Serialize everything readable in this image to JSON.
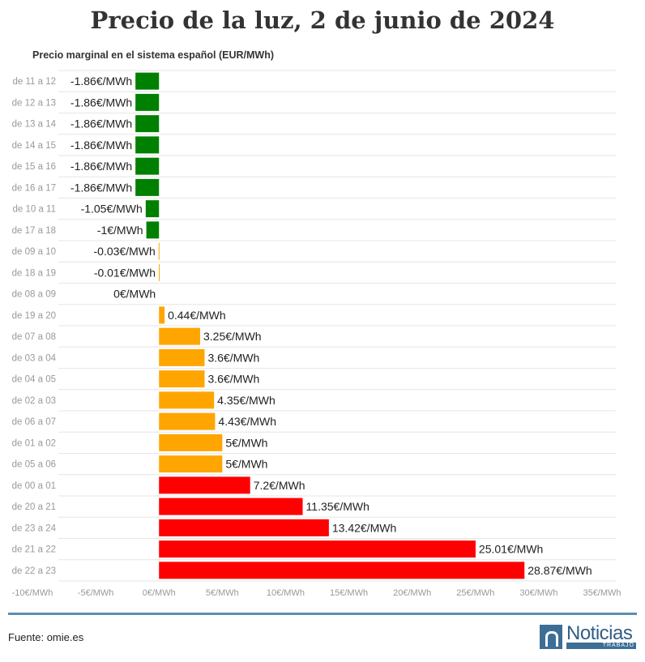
{
  "header": {
    "title": "Precio de la luz, 2 de junio de 2024",
    "subtitle": "Precio marginal en el sistema español (EUR/MWh)"
  },
  "footer": {
    "source": "Fuente: omie.es",
    "logo_text": "Noticias",
    "logo_sub": "TRABAJO"
  },
  "colors": {
    "negative": "#008000",
    "mid": "#FFA500",
    "high": "#FF0000",
    "grid": "#e6e6e6",
    "rule": "#5b8fb0"
  },
  "chart_data": {
    "type": "bar",
    "orientation": "horizontal",
    "title": "Precio de la luz, 2 de junio de 2024",
    "subtitle": "Precio marginal en el sistema español (EUR/MWh)",
    "unit_suffix": "€/MWh",
    "xlim": [
      -10,
      35
    ],
    "xticks": [
      -10,
      -5,
      0,
      5,
      10,
      15,
      20,
      25,
      30,
      35
    ],
    "xtick_labels": [
      "-10€/MWh",
      "-5€/MWh",
      "0€/MWh",
      "5€/MWh",
      "10€/MWh",
      "15€/MWh",
      "20€/MWh",
      "25€/MWh",
      "30€/MWh",
      "35€/MWh"
    ],
    "grid": true,
    "categories": [
      "de 11 a 12",
      "de 12 a 13",
      "de 13 a 14",
      "de 14 a 15",
      "de 15 a 16",
      "de 16 a 17",
      "de 10 a 11",
      "de 17 a 18",
      "de 09 a 10",
      "de 18 a 19",
      "de 08 a 09",
      "de 19 a 20",
      "de 07 a 08",
      "de 03 a 04",
      "de 04 a 05",
      "de 02 a 03",
      "de 06 a 07",
      "de 01 a 02",
      "de 05 a 06",
      "de 00 a 01",
      "de 20 a 21",
      "de 23 a 24",
      "de 21 a 22",
      "de 22 a 23"
    ],
    "values": [
      -1.86,
      -1.86,
      -1.86,
      -1.86,
      -1.86,
      -1.86,
      -1.05,
      -1,
      -0.03,
      -0.01,
      0,
      0.44,
      3.25,
      3.6,
      3.6,
      4.35,
      4.43,
      5,
      5,
      7.2,
      11.35,
      13.42,
      25.01,
      28.87
    ],
    "value_labels": [
      "-1.86€/MWh",
      "-1.86€/MWh",
      "-1.86€/MWh",
      "-1.86€/MWh",
      "-1.86€/MWh",
      "-1.86€/MWh",
      "-1.05€/MWh",
      "-1€/MWh",
      "-0.03€/MWh",
      "-0.01€/MWh",
      "0€/MWh",
      "0.44€/MWh",
      "3.25€/MWh",
      "3.6€/MWh",
      "3.6€/MWh",
      "4.35€/MWh",
      "4.43€/MWh",
      "5€/MWh",
      "5€/MWh",
      "7.2€/MWh",
      "11.35€/MWh",
      "13.42€/MWh",
      "25.01€/MWh",
      "28.87€/MWh"
    ],
    "bar_colors": [
      "#008000",
      "#008000",
      "#008000",
      "#008000",
      "#008000",
      "#008000",
      "#008000",
      "#008000",
      "#FFA500",
      "#FFA500",
      "#FFA500",
      "#FFA500",
      "#FFA500",
      "#FFA500",
      "#FFA500",
      "#FFA500",
      "#FFA500",
      "#FFA500",
      "#FFA500",
      "#FF0000",
      "#FF0000",
      "#FF0000",
      "#FF0000",
      "#FF0000"
    ]
  }
}
